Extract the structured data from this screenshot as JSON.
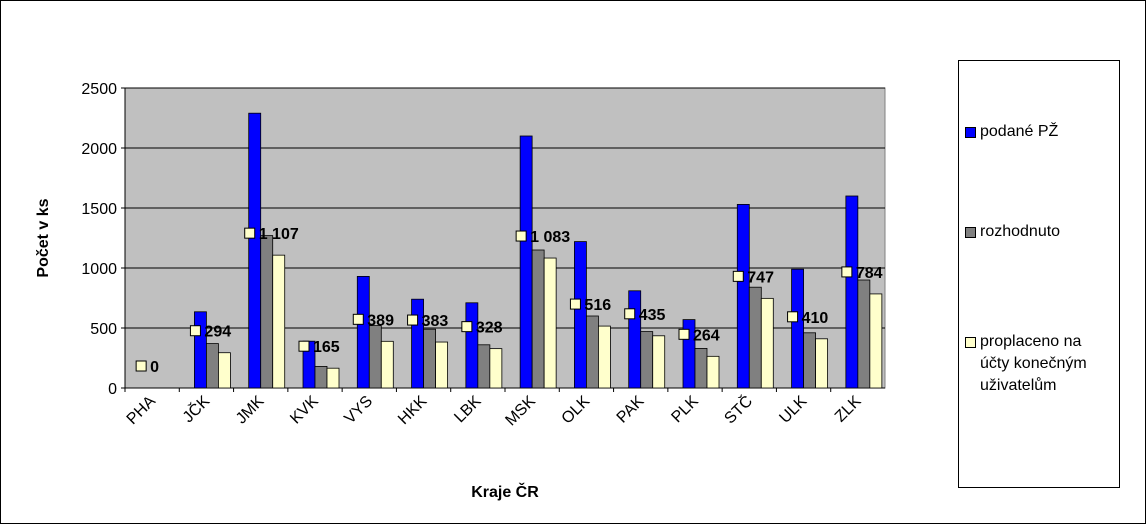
{
  "chart_data": {
    "type": "bar",
    "categories": [
      "PHA",
      "JČK",
      "JMK",
      "KVK",
      "VYS",
      "HKK",
      "LBK",
      "MSK",
      "OLK",
      "PAK",
      "PLK",
      "STČ",
      "ULK",
      "ZLK"
    ],
    "series": [
      {
        "name": "podané PŽ",
        "color": "#0000ff",
        "values": [
          0,
          635,
          2290,
          390,
          930,
          740,
          710,
          2100,
          1220,
          810,
          570,
          1530,
          990,
          1600
        ]
      },
      {
        "name": "rozhodnuto",
        "color": "#808080",
        "values": [
          0,
          370,
          1270,
          180,
          520,
          490,
          360,
          1150,
          600,
          470,
          330,
          840,
          460,
          900
        ]
      },
      {
        "name": "proplaceno na účty konečným uživatelům",
        "color": "#ffffcc",
        "values": [
          0,
          294,
          1107,
          165,
          389,
          383,
          328,
          1083,
          516,
          435,
          264,
          747,
          410,
          784
        ],
        "value_labels": [
          "0",
          "294",
          "1 107",
          "165",
          "389",
          "383",
          "328",
          "1 083",
          "516",
          "435",
          "264",
          "747",
          "410",
          "784"
        ]
      }
    ],
    "ylabel": "Počet v ks",
    "xlabel": "Kraje ČR",
    "ylim": [
      0,
      2500
    ],
    "yticks": [
      0,
      500,
      1000,
      1500,
      2000,
      2500
    ],
    "grid": true,
    "legend": "right"
  }
}
